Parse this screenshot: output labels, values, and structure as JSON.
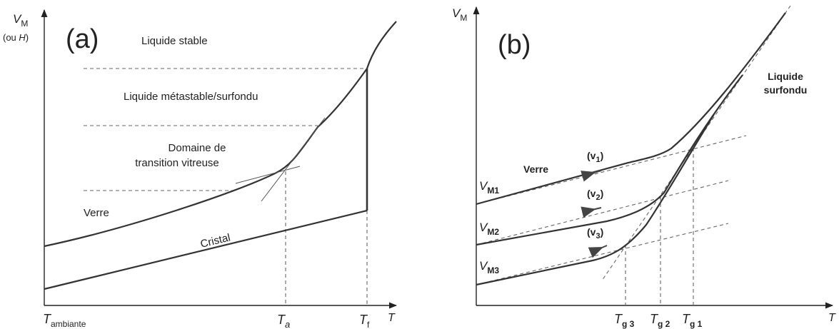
{
  "panel_a": {
    "letter": "(a)",
    "y_axis_label_main": "V",
    "y_axis_label_sub": "M",
    "y_axis_label_extra_prefix": "(ou ",
    "y_axis_label_extra_var": "H",
    "y_axis_label_extra_suffix": ")",
    "x_axis_label": "T",
    "tick_ambient_main": "T",
    "tick_ambient_sub": "ambiante",
    "tick_ta_main": "T",
    "tick_ta_sub": "a",
    "tick_tf_main": "T",
    "tick_tf_sub": "f",
    "region_liquid_stable": "Liquide stable",
    "region_metastable": "Liquide métastable/surfondu",
    "region_transition_line1": "Domaine de",
    "region_transition_line2": "transition vitreuse",
    "curve_glass": "Verre",
    "curve_crystal": "Cristal"
  },
  "panel_b": {
    "letter": "(b)",
    "y_axis_label_main": "V",
    "y_axis_label_sub": "M",
    "x_axis_label": "T",
    "supercooled_line1": "Liquide",
    "supercooled_line2": "surfondu",
    "glass": "Verre",
    "vm1_main": "V",
    "vm1_sub": "M1",
    "vm2_main": "V",
    "vm2_sub": "M2",
    "vm3_main": "V",
    "vm3_sub": "M3",
    "rate1_open": "(v",
    "rate1_sub": "1",
    "rate1_close": ")",
    "rate2_open": "(v",
    "rate2_sub": "2",
    "rate2_close": ")",
    "rate3_open": "(v",
    "rate3_sub": "3",
    "rate3_close": ")",
    "tg3_main": "T",
    "tg3_sub": "g 3",
    "tg2_main": "T",
    "tg2_sub": "g 2",
    "tg1_main": "T",
    "tg1_sub": "g 1"
  }
}
